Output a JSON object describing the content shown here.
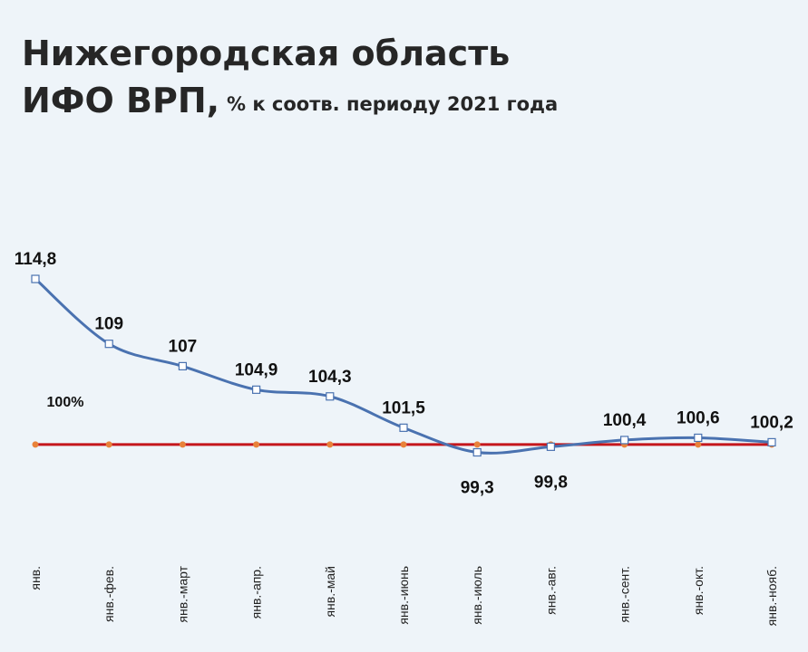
{
  "chart_data": {
    "type": "line",
    "title": "Нижегородская область",
    "title_line2": "ИФО ВРП,",
    "subtitle": "% к соотв. периоду 2021 года",
    "categories": [
      "янв.",
      "янв.-фев.",
      "янв.-март",
      "янв.-апр.",
      "янв.-май",
      "янв.-июнь",
      "янв.-июль",
      "янв.-авг.",
      "янв.-сент.",
      "янв.-окт.",
      "янв.-нояб."
    ],
    "values": [
      114.8,
      109,
      107,
      104.9,
      104.3,
      101.5,
      99.3,
      99.8,
      100.4,
      100.6,
      100.2
    ],
    "value_labels": [
      "114,8",
      "109",
      "107",
      "104,9",
      "104,3",
      "101,5",
      "99,3",
      "99,8",
      "100,4",
      "100,6",
      "100,2"
    ],
    "color": "#4a72b0",
    "reference": {
      "label": "100%",
      "color": "#c4161c",
      "marker_color": "#e8823a",
      "values": [
        100,
        100,
        100,
        100,
        100,
        100,
        100,
        100,
        100,
        100,
        100
      ]
    },
    "ylim": [
      94,
      118
    ],
    "smooth": true
  }
}
